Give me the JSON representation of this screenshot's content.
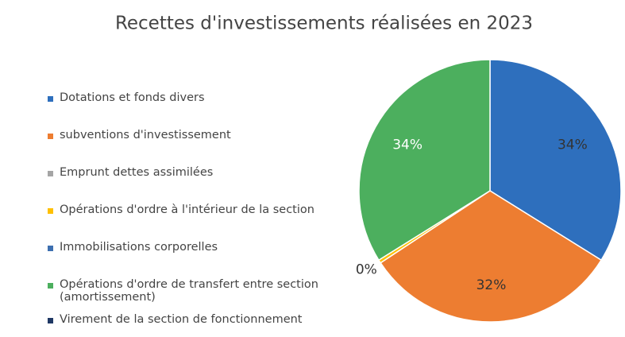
{
  "chart_data": {
    "type": "pie",
    "title": "Recettes d'investissements réalisées en 2023",
    "categories": [
      "Dotations et fonds divers",
      "subventions d'investissement",
      "Emprunt dettes assimilées",
      "Opérations d'ordre à l'intérieur de la section",
      "Immobilisations corporelles",
      "Opérations d'ordre de transfert entre section (amortissement)",
      "Virement de la section de fonctionnement"
    ],
    "values": [
      34,
      32,
      0,
      0.4,
      0,
      34,
      0
    ],
    "value_labels": [
      "34%",
      "32%",
      null,
      "0%",
      null,
      "34%",
      null
    ],
    "colors": [
      "#2e6fbd",
      "#ed7d31",
      "#a5a5a5",
      "#ffc000",
      "#3d6fb0",
      "#4caf5e",
      "#1f3864"
    ],
    "legend": "left"
  }
}
